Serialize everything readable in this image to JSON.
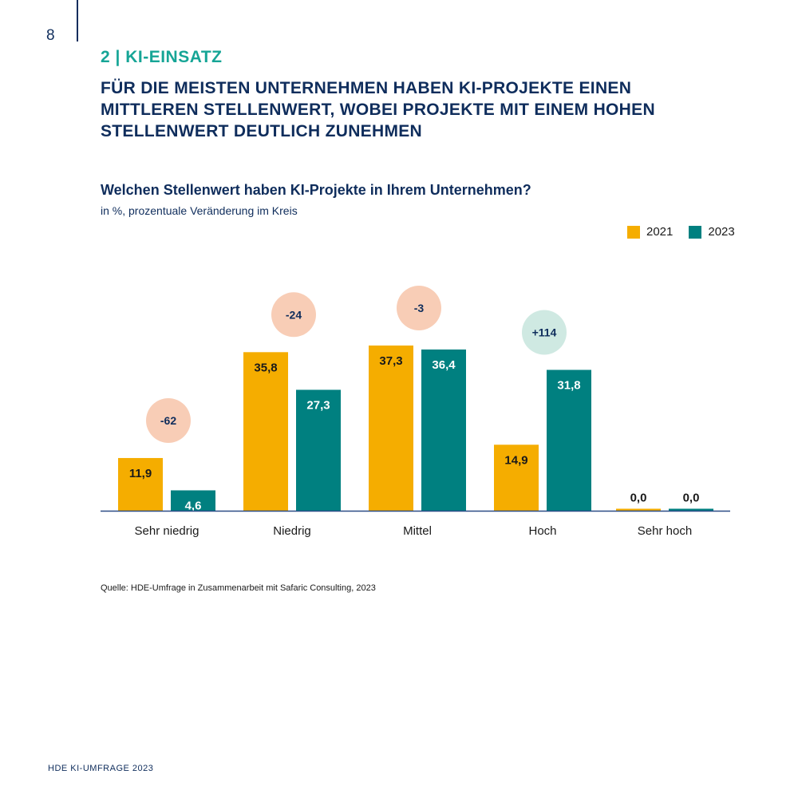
{
  "page": {
    "number": "8",
    "section_label": "2 | KI-EINSATZ",
    "headline": "FÜR DIE MEISTEN UNTERNEHMEN HABEN KI-PROJEKTE EINEN MITTLEREN STELLENWERT, WOBEI PROJEKTE MIT EINEM HOHEN STELLENWERT DEUTLICH ZUNEHMEN",
    "source": "Quelle: HDE-Umfrage in Zusammenarbeit mit Safaric Consulting, 2023",
    "footer": "HDE KI-UMFRAGE 2023"
  },
  "colors": {
    "series_2021": "#f5ad00",
    "series_2023": "#008080",
    "circle_negative": "#f8cdb6",
    "circle_positive": "#cfe9e2",
    "axis": "#2b4c86"
  },
  "chart_data": {
    "type": "bar",
    "title": "Welchen Stellenwert haben KI-Projekte in Ihrem Unternehmen?",
    "subtitle": "in %, prozentuale Veränderung im Kreis",
    "categories": [
      "Sehr niedrig",
      "Niedrig",
      "Mittel",
      "Hoch",
      "Sehr hoch"
    ],
    "series": [
      {
        "name": "2021",
        "values": [
          11.9,
          35.8,
          37.3,
          14.9,
          0.0
        ],
        "labels": [
          "11,9",
          "35,8",
          "37,3",
          "14,9",
          "0,0"
        ]
      },
      {
        "name": "2023",
        "values": [
          4.6,
          27.3,
          36.4,
          31.8,
          0.0
        ],
        "labels": [
          "4,6",
          "27,3",
          "36,4",
          "31,8",
          "0,0"
        ]
      }
    ],
    "changes": [
      "-62",
      "-24",
      "-3",
      "+114",
      ""
    ],
    "ylim": [
      0,
      40
    ],
    "grid": false,
    "legend_position": "top-right"
  }
}
